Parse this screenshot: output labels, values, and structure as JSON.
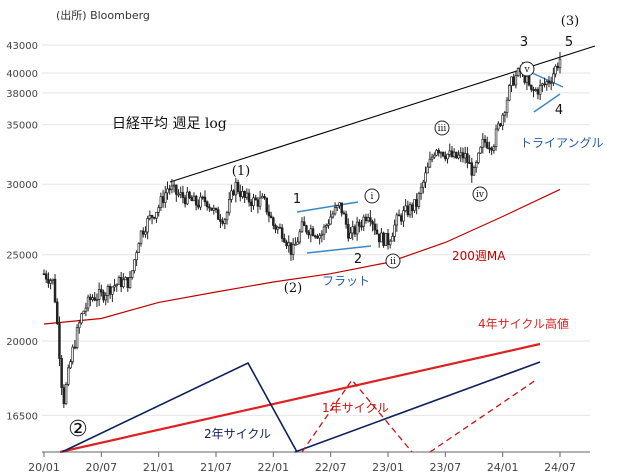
{
  "source": "(出所) Bloomberg",
  "colors": {
    "candle": "#222222",
    "ma": "#c00000",
    "trend": "#000000",
    "channel": "#3a86c8",
    "label_blue": "#1f5fa8",
    "red": "#e02020",
    "navy": "#0d1f5c",
    "darkred": "#cc1111",
    "grid": "#e6e6e6"
  },
  "chart_data": {
    "type": "candlestick",
    "title": "日経平均 週足 log",
    "y_scale": "log",
    "y_ticks": [
      16500,
      20000,
      25000,
      30000,
      35000,
      38000,
      40000,
      43000
    ],
    "x_ticks": [
      "20/01",
      "20/07",
      "21/01",
      "21/07",
      "22/01",
      "22/07",
      "23/01",
      "23/07",
      "24/01",
      "24/07"
    ],
    "x_range": [
      "2020-01",
      "2024-08"
    ],
    "ma_label": "200週MA",
    "price_path": [
      [
        "2020-01",
        23800
      ],
      [
        "2020-02",
        23300
      ],
      [
        "2020-03",
        17000
      ],
      [
        "2020-04",
        19500
      ],
      [
        "2020-05",
        21500
      ],
      [
        "2020-06",
        22400
      ],
      [
        "2020-07",
        22500
      ],
      [
        "2020-08",
        23000
      ],
      [
        "2020-09",
        23300
      ],
      [
        "2020-10",
        23300
      ],
      [
        "2020-11",
        26300
      ],
      [
        "2020-12",
        27400
      ],
      [
        "2021-01",
        28300
      ],
      [
        "2021-02",
        29800
      ],
      [
        "2021-03",
        29200
      ],
      [
        "2021-04",
        28900
      ],
      [
        "2021-05",
        28500
      ],
      [
        "2021-06",
        28800
      ],
      [
        "2021-07",
        27700
      ],
      [
        "2021-08",
        27500
      ],
      [
        "2021-09",
        30000
      ],
      [
        "2021-10",
        28900
      ],
      [
        "2021-11",
        28700
      ],
      [
        "2021-12",
        28700
      ],
      [
        "2022-01",
        27000
      ],
      [
        "2022-02",
        26500
      ],
      [
        "2022-03",
        25100
      ],
      [
        "2022-04",
        26800
      ],
      [
        "2022-05",
        26700
      ],
      [
        "2022-06",
        26300
      ],
      [
        "2022-07",
        27600
      ],
      [
        "2022-08",
        28400
      ],
      [
        "2022-09",
        26200
      ],
      [
        "2022-10",
        27000
      ],
      [
        "2022-11",
        28000
      ],
      [
        "2022-12",
        26200
      ],
      [
        "2023-01",
        25900
      ],
      [
        "2023-02",
        27400
      ],
      [
        "2023-03",
        28000
      ],
      [
        "2023-04",
        28500
      ],
      [
        "2023-05",
        30800
      ],
      [
        "2023-06",
        33100
      ],
      [
        "2023-07",
        32500
      ],
      [
        "2023-08",
        32100
      ],
      [
        "2023-09",
        32300
      ],
      [
        "2023-10",
        30800
      ],
      [
        "2023-11",
        33500
      ],
      [
        "2023-12",
        33300
      ],
      [
        "2024-01",
        36000
      ],
      [
        "2024-02",
        39200
      ],
      [
        "2024-03",
        40300
      ],
      [
        "2024-04",
        38000
      ],
      [
        "2024-05",
        38500
      ],
      [
        "2024-06",
        39400
      ],
      [
        "2024-07",
        41500
      ]
    ],
    "ma_path": [
      [
        "2020-01",
        20900
      ],
      [
        "2020-07",
        21200
      ],
      [
        "2021-01",
        22100
      ],
      [
        "2021-07",
        22700
      ],
      [
        "2022-01",
        23300
      ],
      [
        "2022-07",
        23800
      ],
      [
        "2023-01",
        24500
      ],
      [
        "2023-07",
        25800
      ],
      [
        "2024-01",
        27600
      ],
      [
        "2024-07",
        29600
      ]
    ],
    "wave_labels": [
      {
        "text": "(1)",
        "date": "2021-09"
      },
      {
        "text": "1",
        "date": "2022-03"
      },
      {
        "text": "(2)",
        "date": "2022-03"
      },
      {
        "text": "2",
        "date": "2022-09"
      },
      {
        "text": "ⅰ",
        "date": "2022-09"
      },
      {
        "text": "ⅱ",
        "date": "2023-01"
      },
      {
        "text": "ⅲ",
        "date": "2023-06"
      },
      {
        "text": "ⅳ",
        "date": "2023-10"
      },
      {
        "text": "ⅴ",
        "date": "2024-03"
      },
      {
        "text": "3",
        "date": "2024-03"
      },
      {
        "text": "4",
        "date": "2024-04"
      },
      {
        "text": "5",
        "date": "2024-07"
      },
      {
        "text": "(3)",
        "date": "2024-07"
      },
      {
        "text": "②",
        "date": "2020-03"
      }
    ],
    "annotations": {
      "flat": "フラット",
      "triangle": "トライアングル",
      "cycle4": "4年サイクル高値",
      "cycle2": "2年サイクル",
      "cycle1": "1年サイクル"
    }
  }
}
